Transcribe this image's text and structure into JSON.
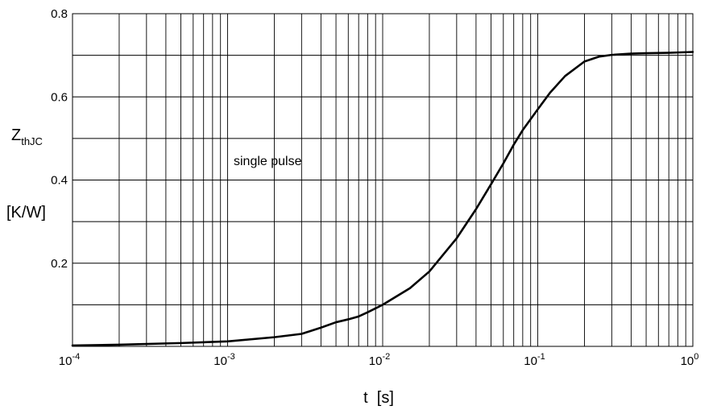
{
  "chart_data": {
    "type": "line",
    "x_scale": "log",
    "y_scale": "linear",
    "xlim": [
      0.0001,
      1
    ],
    "ylim": [
      0,
      0.8
    ],
    "grid": true,
    "ylabel": {
      "symbol": "Z",
      "subscript": "thJC",
      "unit": "[K/W]"
    },
    "xlabel": "t  [s]",
    "annotation": "single pulse",
    "y_ticks": [
      {
        "value": 0.2,
        "label": "0.2"
      },
      {
        "value": 0.4,
        "label": "0.4"
      },
      {
        "value": 0.6,
        "label": "0.6"
      },
      {
        "value": 0.8,
        "label": "0.8"
      }
    ],
    "x_ticks": [
      {
        "value": 0.0001,
        "base": "10",
        "exp": "-4"
      },
      {
        "value": 0.001,
        "base": "10",
        "exp": "-3"
      },
      {
        "value": 0.01,
        "base": "10",
        "exp": "-2"
      },
      {
        "value": 0.1,
        "base": "10",
        "exp": "-1"
      },
      {
        "value": 1,
        "base": "10",
        "exp": "0"
      }
    ],
    "series": [
      {
        "color": "#000000",
        "x": [
          0.0001,
          0.0002,
          0.0005,
          0.001,
          0.002,
          0.003,
          0.004,
          0.005,
          0.006,
          0.007,
          0.008,
          0.01,
          0.015,
          0.02,
          0.03,
          0.04,
          0.05,
          0.06,
          0.07,
          0.08,
          0.1,
          0.12,
          0.15,
          0.2,
          0.25,
          0.3,
          0.4,
          0.5,
          0.7,
          1
        ],
        "y": [
          0.002,
          0.004,
          0.008,
          0.012,
          0.022,
          0.03,
          0.045,
          0.058,
          0.065,
          0.072,
          0.082,
          0.1,
          0.14,
          0.18,
          0.26,
          0.33,
          0.39,
          0.44,
          0.485,
          0.52,
          0.57,
          0.61,
          0.65,
          0.685,
          0.697,
          0.701,
          0.704,
          0.705,
          0.706,
          0.708
        ]
      }
    ]
  }
}
